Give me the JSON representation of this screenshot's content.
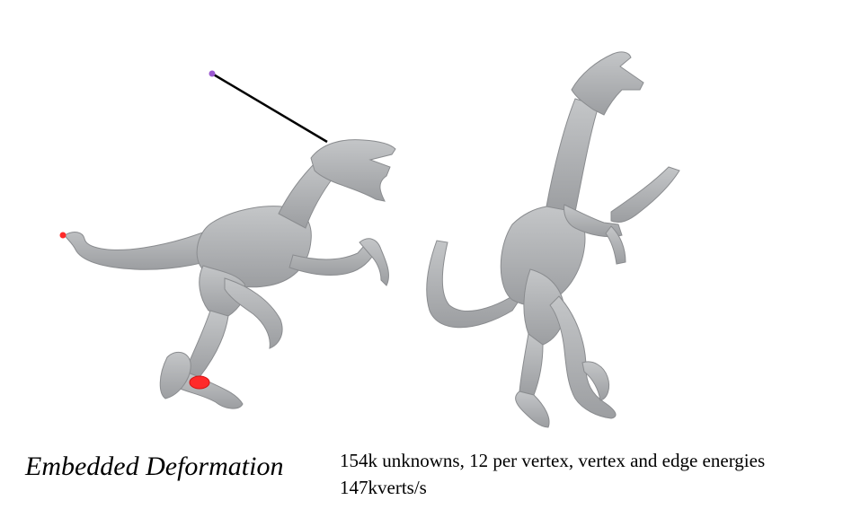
{
  "caption": {
    "method": "Embedded Deformation",
    "stats_line1": "154k unknowns, 12 per vertex, vertex and edge energies",
    "stats_line2": "147kverts/s"
  },
  "colors": {
    "mesh": "#a9abad",
    "handle_line": "#000000",
    "handle_point": "#9b59d0",
    "constraint_points": "#ff2a2a"
  }
}
